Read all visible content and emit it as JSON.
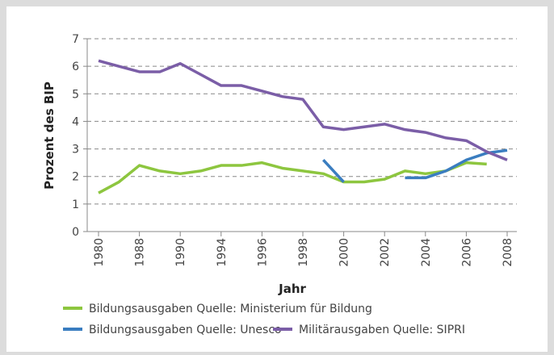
{
  "chart_data": {
    "type": "line",
    "y_label": "Prozent des BIP",
    "x_label": "Jahr",
    "categories": [
      "1980",
      null,
      "1988",
      null,
      "1990",
      null,
      "1994",
      null,
      "1996",
      null,
      "1998",
      null,
      "2000",
      null,
      "2002",
      null,
      "2004",
      null,
      "2006",
      null,
      "2008"
    ],
    "series": [
      {
        "name": "Bildungsausgaben Quelle: Ministerium für Bildung",
        "color": "#8dc63f",
        "values": [
          1.4,
          1.8,
          2.4,
          2.2,
          2.1,
          2.2,
          2.4,
          2.4,
          2.5,
          2.3,
          2.2,
          2.1,
          1.8,
          1.8,
          1.9,
          2.2,
          2.1,
          2.2,
          2.5,
          2.45,
          null
        ]
      },
      {
        "name": "Bildungsausgaben Quelle: Unesco",
        "color": "#3a7dc0",
        "values": [
          null,
          null,
          null,
          null,
          null,
          null,
          null,
          null,
          null,
          null,
          null,
          2.6,
          1.8,
          null,
          null,
          1.95,
          1.95,
          2.2,
          2.6,
          2.85,
          2.95
        ]
      },
      {
        "name": "Militärausgaben Quelle: SIPRI",
        "color": "#7b5ea7",
        "values": [
          6.2,
          6.0,
          5.8,
          5.8,
          6.1,
          5.7,
          5.3,
          5.3,
          5.1,
          4.9,
          4.8,
          3.8,
          3.7,
          3.8,
          3.9,
          3.7,
          3.6,
          3.4,
          3.3,
          2.9,
          2.6
        ]
      }
    ],
    "ylim": [
      0,
      7
    ],
    "yticks": [
      0,
      1,
      2,
      3,
      4,
      5,
      6,
      7
    ],
    "grid": true
  }
}
